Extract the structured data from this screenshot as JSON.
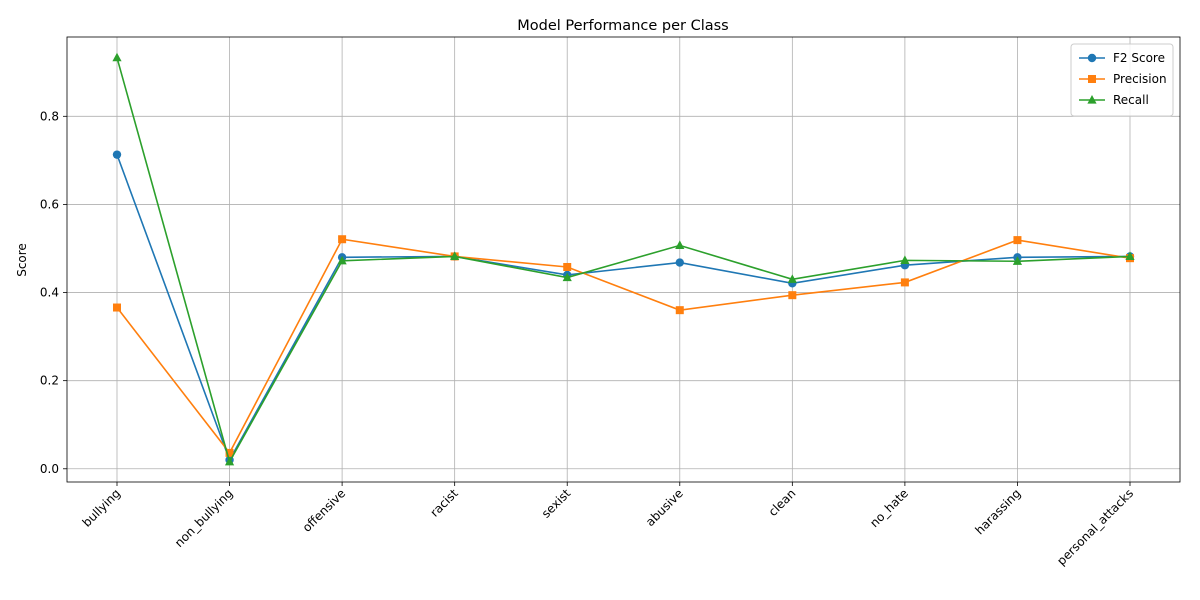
{
  "chart_data": {
    "type": "line",
    "title": "Model Performance per Class",
    "xlabel": "",
    "ylabel": "Score",
    "categories": [
      "bullying",
      "non_bullying",
      "offensive",
      "racist",
      "sexist",
      "abusive",
      "clean",
      "no_hate",
      "harassing",
      "personal_attacks"
    ],
    "ylim": [
      -0.03,
      0.98
    ],
    "yticks": [
      0.0,
      0.2,
      0.4,
      0.6,
      0.8
    ],
    "ytick_labels": [
      "0.0",
      "0.2",
      "0.4",
      "0.6",
      "0.8"
    ],
    "grid": true,
    "legend_position": "top-right",
    "series": [
      {
        "name": "F2 Score",
        "color": "#1f77b4",
        "marker": "circle",
        "values": [
          0.713,
          0.02,
          0.48,
          0.482,
          0.44,
          0.468,
          0.421,
          0.462,
          0.48,
          0.482
        ]
      },
      {
        "name": "Precision",
        "color": "#ff7f0e",
        "marker": "square",
        "values": [
          0.366,
          0.036,
          0.521,
          0.482,
          0.458,
          0.36,
          0.394,
          0.423,
          0.519,
          0.478
        ]
      },
      {
        "name": "Recall",
        "color": "#2ca02c",
        "marker": "triangle",
        "values": [
          0.933,
          0.016,
          0.472,
          0.482,
          0.434,
          0.507,
          0.43,
          0.473,
          0.471,
          0.482
        ]
      }
    ]
  }
}
